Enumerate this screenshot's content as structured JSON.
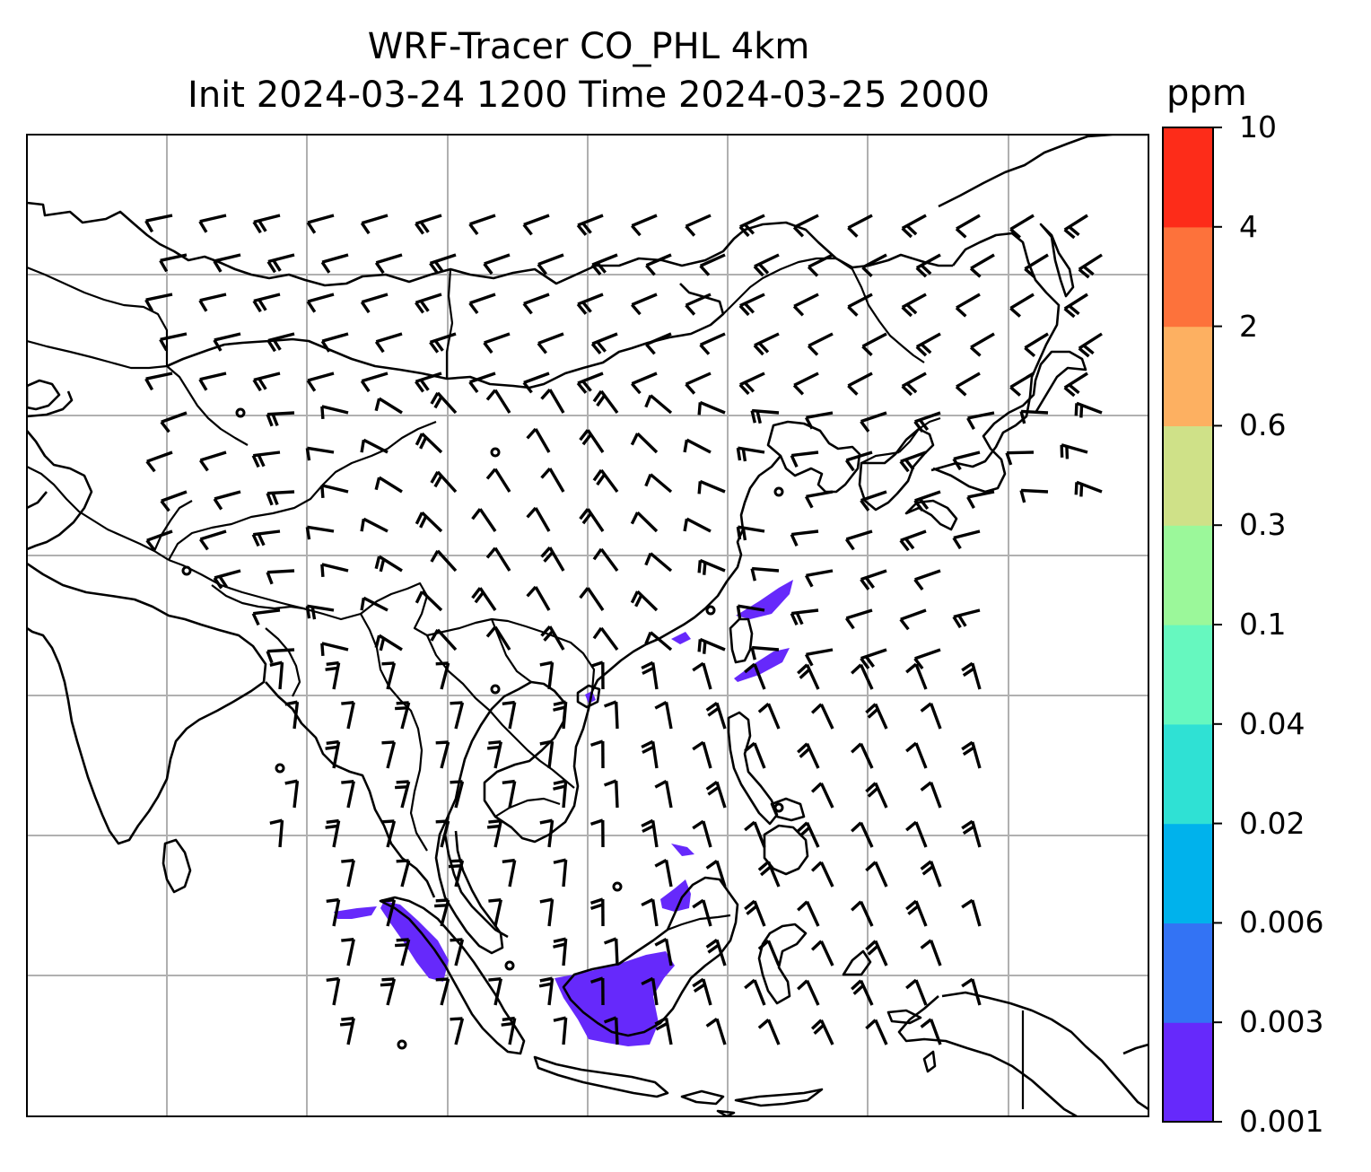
{
  "title_line1": "WRF-Tracer CO_PHL 4km",
  "title_line2": "Init 2024-03-24 1200 Time 2024-03-25 2000",
  "colorbar": {
    "unit": "ppm",
    "levels": [
      "0.001",
      "0.003",
      "0.006",
      "0.02",
      "0.04",
      "0.1",
      "0.3",
      "0.6",
      "2",
      "4",
      "10"
    ],
    "colors": [
      "#6629fb",
      "#3373f4",
      "#00b2ec",
      "#2fe1d4",
      "#66f8bf",
      "#9bf89a",
      "#cfe188",
      "#fdb061",
      "#fd723b",
      "#fd2c19"
    ]
  },
  "map_features": [
    "coastlines",
    "country-borders",
    "lat-lon-gridlines",
    "wind-barbs",
    "co-tracer-concentration"
  ],
  "colors": {
    "grid": "#b0b0b0",
    "lines": "#000000",
    "shading": "#6629fb"
  }
}
